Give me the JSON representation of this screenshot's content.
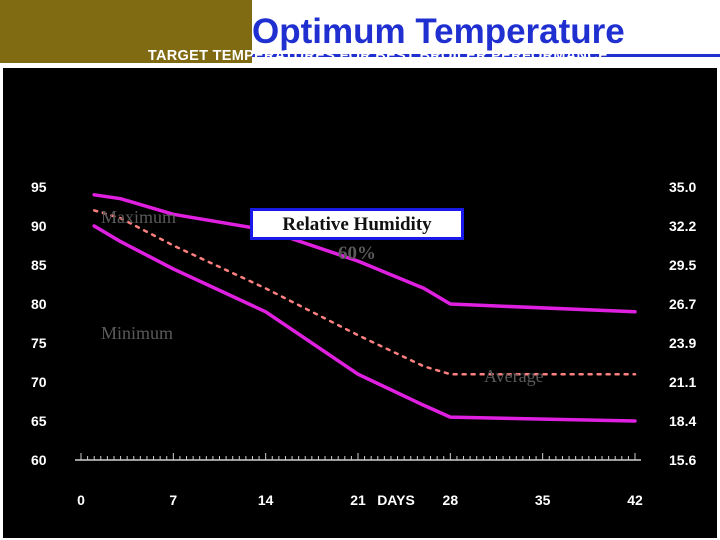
{
  "slide": {
    "title": "Optimum Temperature"
  },
  "colors": {
    "logo_block": "#806a12",
    "title": "#1f2fd0",
    "chart_background": "#000000",
    "series_line": "#e020e0",
    "average_line": "#ff8080",
    "humidity_border": "#1a1ae8"
  },
  "chart_data": {
    "type": "line",
    "title": "TARGET TEMPERATURES FOR BEST BROILER PERFORMANCE",
    "xlabel": "DAYS",
    "ylabel": "",
    "x_ticks": [
      0,
      7,
      14,
      21,
      28,
      35,
      42
    ],
    "y_ticks_left": [
      95,
      90,
      85,
      80,
      75,
      70,
      65,
      60
    ],
    "y_ticks_right": [
      "35.0",
      "32.2",
      "29.5",
      "26.7",
      "23.9",
      "21.1",
      "18.4",
      "15.6"
    ],
    "xlim": [
      0,
      42
    ],
    "ylim": [
      60,
      95
    ],
    "grid": false,
    "series": [
      {
        "name": "Maximum",
        "style": "solid",
        "x": [
          1,
          3,
          7,
          14,
          21,
          26,
          28,
          42
        ],
        "y": [
          94,
          93.5,
          91.5,
          89.5,
          85.5,
          82,
          80,
          79
        ]
      },
      {
        "name": "Average",
        "style": "dotted",
        "x": [
          1,
          3,
          7,
          14,
          21,
          26,
          28,
          42
        ],
        "y": [
          92,
          91,
          87.5,
          82,
          76,
          72,
          71,
          71
        ]
      },
      {
        "name": "Minimum",
        "style": "solid",
        "x": [
          1,
          3,
          7,
          14,
          21,
          26,
          28,
          42
        ],
        "y": [
          90,
          88,
          84.5,
          79,
          71,
          67,
          65.5,
          65
        ]
      }
    ],
    "annotations": {
      "maximum": "Maximum",
      "minimum": "Minimum",
      "average": "Average",
      "humidity_label": "Relative Humidity",
      "humidity_value": "60%"
    }
  }
}
